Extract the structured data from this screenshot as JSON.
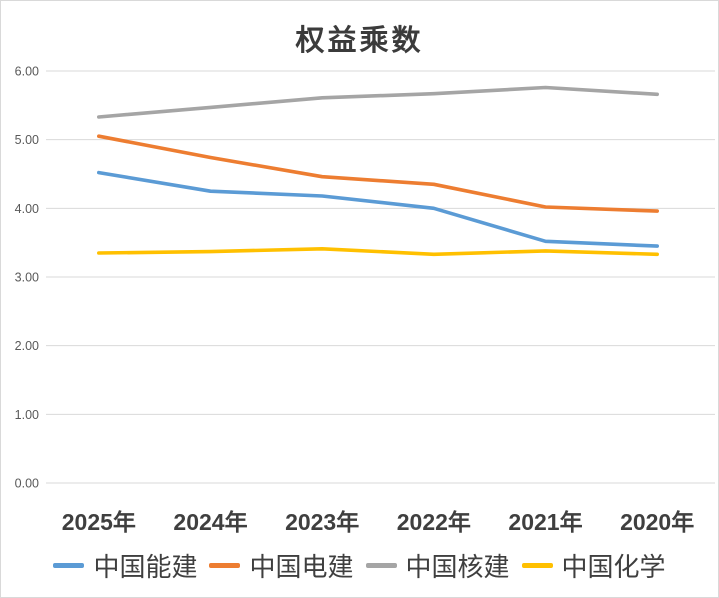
{
  "chart_data": {
    "type": "line",
    "title": "权益乘数",
    "categories": [
      "2025年",
      "2024年",
      "2023年",
      "2022年",
      "2021年",
      "2020年"
    ],
    "series": [
      {
        "name": "中国能建",
        "color": "#5B9BD5",
        "values": [
          4.52,
          4.25,
          4.18,
          4.0,
          3.52,
          3.45
        ]
      },
      {
        "name": "中国电建",
        "color": "#ED7D31",
        "values": [
          5.05,
          4.74,
          4.46,
          4.35,
          4.02,
          3.96
        ]
      },
      {
        "name": "中国核建",
        "color": "#A5A5A5",
        "values": [
          5.33,
          5.47,
          5.61,
          5.67,
          5.76,
          5.66
        ]
      },
      {
        "name": "中国化学",
        "color": "#FFC000",
        "values": [
          3.35,
          3.37,
          3.41,
          3.33,
          3.38,
          3.33
        ]
      }
    ],
    "y_axis": {
      "min": 0,
      "max": 6,
      "step": 1,
      "tick_labels": [
        "6.00",
        "5.00",
        "4.00",
        "3.00",
        "2.00",
        "1.00",
        "0.00"
      ]
    },
    "grid": true,
    "legend_position": "bottom",
    "colors": {
      "gridline": "#d9d9d9",
      "tick_text": "#595959",
      "axis_text": "#3f3f3f",
      "title_text": "#3b3b3b"
    }
  }
}
